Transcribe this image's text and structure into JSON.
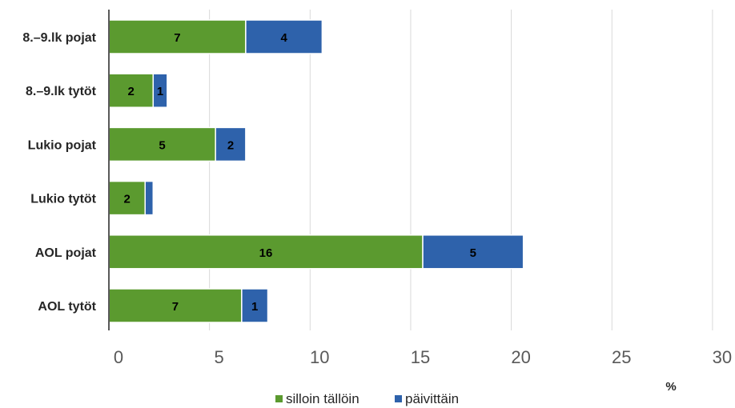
{
  "chart_data": {
    "type": "bar",
    "orientation": "horizontal",
    "stacked": true,
    "categories": [
      "8.–9.lk pojat",
      "8.–9.lk tytöt",
      "Lukio pojat",
      "Lukio tytöt",
      "AOL pojat",
      "AOL tytöt"
    ],
    "series": [
      {
        "name": "silloin tällöin",
        "color": "#5b9a2f",
        "values": [
          6.8,
          2.2,
          5.3,
          1.8,
          15.6,
          6.6
        ],
        "labels": [
          "7",
          "2",
          "5",
          "2",
          "16",
          "7"
        ]
      },
      {
        "name": "päivittäin",
        "color": "#2e62ab",
        "values": [
          3.8,
          0.7,
          1.5,
          0.4,
          5.0,
          1.3
        ],
        "labels": [
          "4",
          "1",
          "2",
          "",
          "5",
          "1"
        ]
      }
    ],
    "xlim": [
      0,
      30
    ],
    "xticks": [
      "0",
      "5",
      "10",
      "15",
      "20",
      "25",
      "30"
    ],
    "xlabel": "%",
    "title": "",
    "ylabel": "",
    "grid": "vertical",
    "legend": "bottom"
  }
}
